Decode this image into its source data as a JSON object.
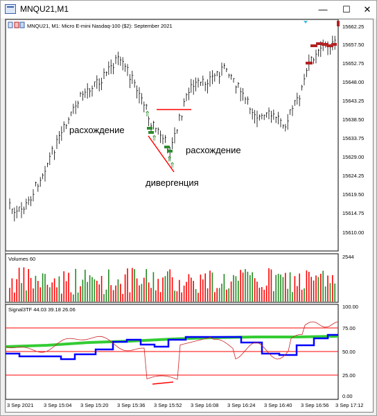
{
  "window": {
    "title": "MNQU21,M1",
    "minimize_glyph": "—",
    "maximize_glyph": "☐",
    "close_glyph": "✕"
  },
  "main_chart": {
    "header": "MNQU21, M1:  Micro E-mini Nasdaq-100 ($2): September 2021",
    "price_labels": [
      "15662.25",
      "15657.50",
      "15652.75",
      "15648.00",
      "15643.25",
      "15638.50",
      "15633.75",
      "15629.00",
      "15624.25",
      "15619.50",
      "15614.75",
      "15610.00"
    ],
    "annotations": {
      "divergence_1": "расхождение",
      "divergence_2": "расхождение",
      "divergence_3": "дивергенция"
    }
  },
  "volume_panel": {
    "label": "Volumes 60",
    "max_label": "2544"
  },
  "indicator_panel": {
    "label": "Signal3TF 44.03 39.18 26.06",
    "levels": [
      "100.00",
      "75.00",
      "50.00",
      "25.00",
      "0.00"
    ]
  },
  "time_axis": [
    "3 Sep 2021",
    "3 Sep 15:04",
    "3 Sep 15:20",
    "3 Sep 15:36",
    "3 Sep 15:52",
    "3 Sep 16:08",
    "3 Sep 16:24",
    "3 Sep 16:40",
    "3 Sep 16:56",
    "3 Sep 17:12"
  ],
  "colors": {
    "candle": "#000000",
    "sell_arrow": "#b22222",
    "buy_arrow": "#2e8b2e",
    "level_line": "#ff0000",
    "signal_green": "#33cc33",
    "signal_blue": "#0000ff",
    "signal_red_thin": "#cc2222",
    "volume_red": "#ff0000",
    "volume_green": "#228b22"
  }
}
